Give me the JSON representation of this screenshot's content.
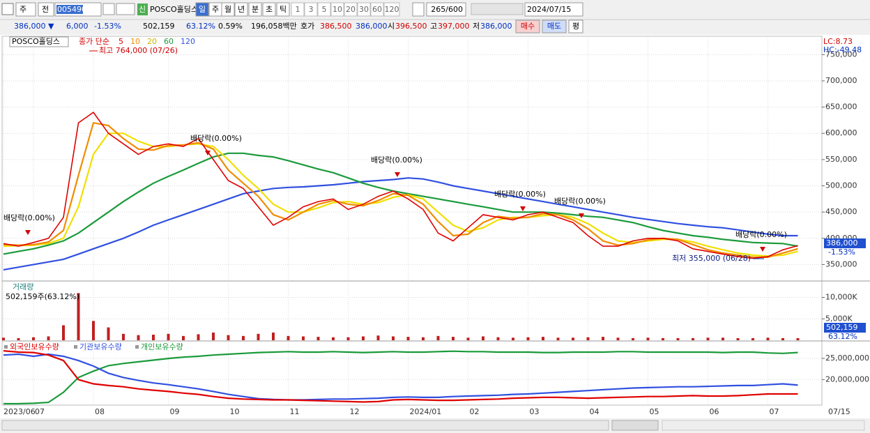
{
  "toolbar": {
    "market": "주",
    "mode": "전",
    "code": "005490",
    "badge": "신",
    "name": "POSCO홀딩스",
    "periods": [
      "일",
      "주",
      "월",
      "년",
      "분",
      "초",
      "틱"
    ],
    "intervals": [
      "1",
      "3",
      "5",
      "10",
      "20",
      "30",
      "60",
      "120"
    ],
    "count": "265/600",
    "date": "2024/07/15"
  },
  "info_bar": {
    "price": "386,000 ▼",
    "change": "6,000",
    "change_pct": "-1.53%",
    "volume": "502,159",
    "volume_ratio": "63.12%",
    "turnover": "0.59%",
    "amount": "196,058백만",
    "ask_label": "호가",
    "ask": "386,500",
    "bid": "386,000",
    "open_label": "시",
    "open": "396,500",
    "high_label": "고",
    "high": "397,000",
    "low_label": "저",
    "low": "386,000",
    "buy": "매수",
    "sell": "매도",
    "avg": "평"
  },
  "chart_data": [
    {
      "type": "line",
      "title": "POSCO홀딩스",
      "legend_prefix": "종가 단순",
      "categories": [
        "2023/06",
        null,
        "07",
        null,
        null,
        null,
        "08",
        null,
        null,
        null,
        null,
        "09",
        null,
        null,
        null,
        "10",
        null,
        null,
        null,
        "11",
        null,
        null,
        null,
        "12",
        null,
        null,
        null,
        "2024/01",
        null,
        null,
        null,
        "02",
        null,
        null,
        null,
        "03",
        null,
        null,
        null,
        "04",
        null,
        null,
        null,
        "05",
        null,
        null,
        null,
        "06",
        null,
        null,
        null,
        "07",
        null,
        null
      ],
      "x_end_label": "07/15",
      "series": [
        {
          "name": "5",
          "color": "#e00000",
          "values": [
            390000,
            385000,
            392000,
            400000,
            440000,
            620000,
            640000,
            600000,
            580000,
            560000,
            575000,
            580000,
            575000,
            590000,
            550000,
            510000,
            495000,
            460000,
            425000,
            440000,
            460000,
            470000,
            475000,
            455000,
            465000,
            480000,
            490000,
            475000,
            455000,
            410000,
            395000,
            420000,
            445000,
            440000,
            435000,
            445000,
            450000,
            440000,
            430000,
            405000,
            385000,
            385000,
            395000,
            400000,
            400000,
            395000,
            380000,
            375000,
            370000,
            365000,
            362000,
            365000,
            378000,
            386000
          ]
        },
        {
          "name": "10",
          "color": "#f08c00",
          "values": [
            388000,
            387000,
            388000,
            393000,
            415000,
            520000,
            620000,
            615000,
            590000,
            570000,
            568000,
            577000,
            578000,
            582000,
            570000,
            530000,
            505000,
            480000,
            445000,
            435000,
            450000,
            465000,
            472000,
            465000,
            462000,
            472000,
            485000,
            482000,
            465000,
            432000,
            405000,
            408000,
            430000,
            442000,
            438000,
            440000,
            447000,
            445000,
            435000,
            418000,
            395000,
            387000,
            390000,
            397000,
            400000,
            398000,
            388000,
            378000,
            372000,
            368000,
            364000,
            364000,
            372000,
            380000
          ]
        },
        {
          "name": "20",
          "color": "#f0e000",
          "values": [
            385000,
            386000,
            387000,
            390000,
            400000,
            460000,
            560000,
            600000,
            600000,
            585000,
            575000,
            575000,
            578000,
            580000,
            575000,
            550000,
            520000,
            495000,
            465000,
            450000,
            450000,
            458000,
            468000,
            470000,
            465000,
            468000,
            478000,
            483000,
            475000,
            450000,
            425000,
            413000,
            420000,
            435000,
            440000,
            440000,
            443000,
            445000,
            440000,
            428000,
            410000,
            395000,
            392000,
            395000,
            398000,
            398000,
            393000,
            385000,
            378000,
            372000,
            368000,
            366000,
            368000,
            375000
          ]
        },
        {
          "name": "60",
          "color": "#1a9a3a",
          "values": [
            370000,
            375000,
            380000,
            387000,
            395000,
            410000,
            430000,
            450000,
            470000,
            488000,
            505000,
            518000,
            530000,
            543000,
            555000,
            562000,
            562000,
            558000,
            555000,
            548000,
            540000,
            532000,
            525000,
            515000,
            505000,
            497000,
            490000,
            485000,
            480000,
            475000,
            470000,
            465000,
            460000,
            455000,
            450000,
            450000,
            450000,
            448000,
            445000,
            442000,
            440000,
            435000,
            430000,
            422000,
            415000,
            410000,
            405000,
            402000,
            398000,
            395000,
            392000,
            391000,
            390000,
            385000
          ]
        },
        {
          "name": "120",
          "color": "#3050e0",
          "values": [
            340000,
            345000,
            350000,
            355000,
            360000,
            370000,
            380000,
            390000,
            400000,
            412000,
            425000,
            435000,
            445000,
            455000,
            465000,
            475000,
            485000,
            490000,
            495000,
            497000,
            498000,
            500000,
            502000,
            505000,
            508000,
            510000,
            512000,
            515000,
            513000,
            507000,
            500000,
            495000,
            490000,
            485000,
            480000,
            475000,
            470000,
            465000,
            460000,
            455000,
            450000,
            445000,
            440000,
            436000,
            432000,
            428000,
            425000,
            422000,
            420000,
            416000,
            412000,
            408000,
            405000,
            405000
          ]
        }
      ],
      "ylim": [
        320000,
        785000
      ],
      "yticks": [
        {
          "value": 350000,
          "label": "350,000"
        },
        {
          "value": 400000,
          "label": "400,000"
        },
        {
          "value": 450000,
          "label": "450,000"
        },
        {
          "value": 500000,
          "label": "500,000"
        },
        {
          "value": 550000,
          "label": "550,000"
        },
        {
          "value": 600000,
          "label": "600,000"
        },
        {
          "value": 650000,
          "label": "650,000"
        },
        {
          "value": 700000,
          "label": "700,000"
        },
        {
          "value": 750000,
          "label": "750,000"
        }
      ],
      "grid": true,
      "last_price_label": "386,000",
      "last_change_label": "-1.53%",
      "annotations": [
        "LC:8.73",
        "HC:-49.48",
        "최고 764,000 (07/26)",
        "최저 355,000 (06/28)",
        "배당락(0.00%)",
        "배당락(0.00%)",
        "배당락(0.00%)",
        "배당락(0.00%)",
        "배당락(0.00%)",
        "배당락(0.00%)"
      ]
    },
    {
      "type": "bar",
      "title": "거래량",
      "subtitle": "502,159주(63.12%)",
      "color": "#c02020",
      "values": [
        600,
        500,
        700,
        900,
        3500,
        11000,
        4500,
        3000,
        1500,
        1200,
        1300,
        1500,
        1000,
        1400,
        1800,
        1200,
        1000,
        1500,
        1800,
        1000,
        900,
        800,
        700,
        700,
        900,
        1100,
        900,
        800,
        700,
        1000,
        800,
        600,
        900,
        700,
        600,
        700,
        800,
        600,
        600,
        700,
        800,
        600,
        500,
        600,
        500,
        500,
        500,
        600,
        600,
        500,
        500,
        600,
        500,
        502.159
      ],
      "ylim": [
        0,
        13500
      ],
      "yticks": [
        {
          "value": 5000,
          "label": "5,000K"
        },
        {
          "value": 10000,
          "label": "10,000K"
        }
      ],
      "grid": true,
      "last_label": "502,159",
      "last_pct_label": "63.12%"
    },
    {
      "type": "line",
      "series": [
        {
          "name": "외국인보유수량",
          "color": "#e00000",
          "values": [
            26800000,
            26500000,
            26400000,
            25800000,
            24500000,
            20000000,
            19000000,
            18600000,
            18300000,
            17800000,
            17500000,
            17200000,
            16800000,
            16500000,
            16000000,
            15600000,
            15400000,
            15300000,
            15200000,
            15200000,
            15100000,
            15000000,
            14900000,
            14800000,
            14700000,
            14800000,
            15200000,
            15300000,
            15200000,
            15100000,
            15100000,
            15200000,
            15300000,
            15400000,
            15600000,
            15700000,
            15800000,
            15800000,
            15700000,
            15600000,
            15700000,
            15800000,
            15900000,
            16000000,
            16000000,
            16100000,
            16200000,
            16100000,
            16100000,
            16200000,
            16400000,
            16600000,
            16600000,
            16600000
          ]
        },
        {
          "name": "기관보유수량",
          "color": "#3050e0",
          "values": [
            25800000,
            26000000,
            25500000,
            26000000,
            25500000,
            24500000,
            23200000,
            21500000,
            20500000,
            19800000,
            19200000,
            18800000,
            18300000,
            17800000,
            17200000,
            16500000,
            16000000,
            15500000,
            15300000,
            15200000,
            15200000,
            15300000,
            15400000,
            15400000,
            15500000,
            15600000,
            15800000,
            15900000,
            15800000,
            15800000,
            16000000,
            16100000,
            16200000,
            16300000,
            16500000,
            16600000,
            16800000,
            17000000,
            17200000,
            17400000,
            17600000,
            17800000,
            18000000,
            18100000,
            18200000,
            18300000,
            18300000,
            18400000,
            18500000,
            18600000,
            18600000,
            18800000,
            19000000,
            18700000
          ]
        },
        {
          "name": "개인보유수량",
          "color": "#1a9a3a",
          "values": [
            14300000,
            14300000,
            14400000,
            14600000,
            17000000,
            20500000,
            22000000,
            23300000,
            23800000,
            24200000,
            24600000,
            25000000,
            25300000,
            25500000,
            25800000,
            26000000,
            26200000,
            26400000,
            26500000,
            26600000,
            26500000,
            26500000,
            26600000,
            26500000,
            26400000,
            26500000,
            26600000,
            26500000,
            26500000,
            26600000,
            26700000,
            26600000,
            26600000,
            26500000,
            26500000,
            26500000,
            26400000,
            26400000,
            26500000,
            26500000,
            26500000,
            26600000,
            26600000,
            26500000,
            26500000,
            26500000,
            26500000,
            26500000,
            26400000,
            26500000,
            26500000,
            26300000,
            26200000,
            26400000
          ]
        }
      ],
      "ylim": [
        13800000,
        28800000
      ],
      "yticks": [
        {
          "value": 20000000,
          "label": "20,000,000"
        },
        {
          "value": 25000000,
          "label": "25,000,000"
        }
      ],
      "grid": true
    }
  ]
}
